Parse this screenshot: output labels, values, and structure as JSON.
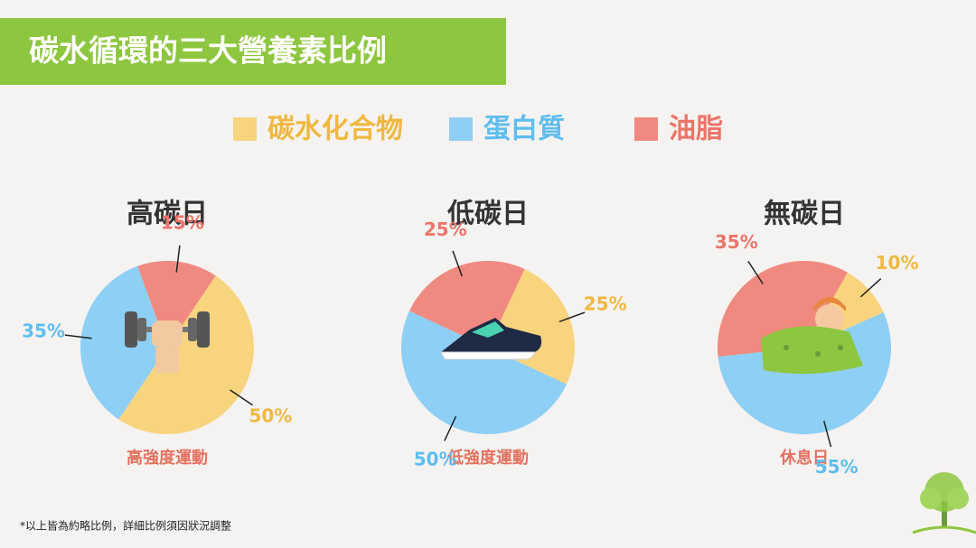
{
  "header": {
    "title": "碳水循環的三大營養素比例"
  },
  "footnote": "*以上皆為約略比例，詳細比例須因狀況調整",
  "chart_data": [
    {
      "type": "pie",
      "title": "高碳日",
      "subtitle": "高強度運動",
      "categories": [
        "碳水化合物",
        "蛋白質",
        "油脂"
      ],
      "values": [
        50,
        35,
        15
      ],
      "value_labels": [
        "50%",
        "35%",
        "15%"
      ],
      "colors": [
        "#f9d47e",
        "#8ecff5",
        "#f08a80"
      ]
    },
    {
      "type": "pie",
      "title": "低碳日",
      "subtitle": "低強度運動",
      "categories": [
        "碳水化合物",
        "蛋白質",
        "油脂"
      ],
      "values": [
        25,
        50,
        25
      ],
      "value_labels": [
        "25%",
        "50%",
        "25%"
      ],
      "colors": [
        "#f9d47e",
        "#8ecff5",
        "#f08a80"
      ]
    },
    {
      "type": "pie",
      "title": "無碳日",
      "subtitle": "休息日",
      "categories": [
        "碳水化合物",
        "蛋白質",
        "油脂"
      ],
      "values": [
        10,
        55,
        35
      ],
      "value_labels": [
        "10%",
        "55%",
        "35%"
      ],
      "colors": [
        "#f9d47e",
        "#8ecff5",
        "#f08a80"
      ]
    }
  ]
}
